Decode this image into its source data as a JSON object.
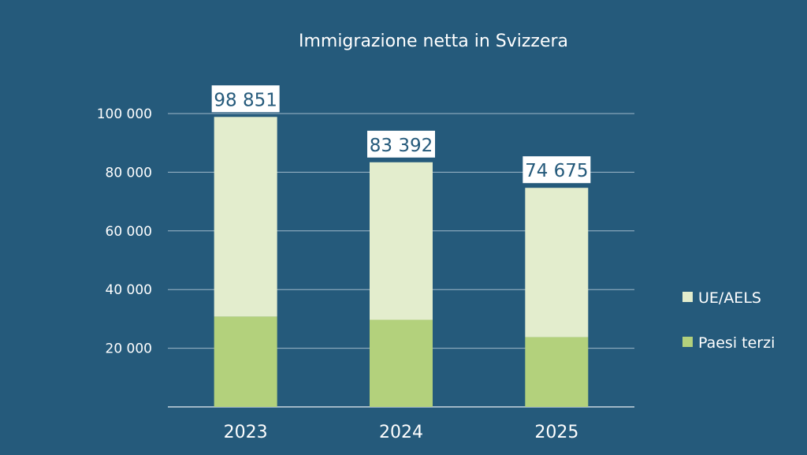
{
  "chart_data": {
    "type": "bar",
    "stacked": true,
    "title": "Immigrazione netta in Svizzera",
    "xlabel": "",
    "ylabel": "",
    "categories": [
      "2023",
      "2024",
      "2025"
    ],
    "ylim": [
      0,
      100000
    ],
    "yticks": [
      20000,
      40000,
      60000,
      80000,
      100000
    ],
    "ytick_labels": [
      "20 000",
      "40 000",
      "60 000",
      "80 000",
      "100 000"
    ],
    "grid": true,
    "legend_position": "right",
    "series": [
      {
        "name": "Paesi terzi",
        "color": "#b3d17c",
        "values": [
          30800,
          29700,
          23800
        ]
      },
      {
        "name": "UE/AELS",
        "color": "#e3edcd",
        "values": [
          68051,
          53692,
          50875
        ]
      }
    ],
    "totals": [
      98851,
      83392,
      74675
    ],
    "total_labels": [
      "98 851",
      "83 392",
      "74 675"
    ],
    "legend_order": [
      "UE/AELS",
      "Paesi terzi"
    ],
    "colors": {
      "background": "#255a7b",
      "grid": "#9fb8c9",
      "axis": "#c9d6df",
      "label_box": "#ffffff"
    }
  }
}
